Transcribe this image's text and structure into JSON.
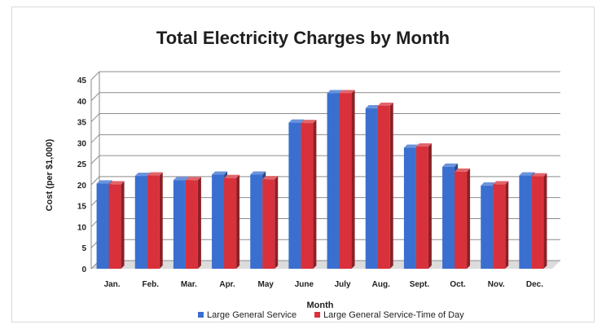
{
  "chart_data": {
    "type": "bar",
    "title": "Total Electricity Charges by Month",
    "xlabel": "Month",
    "ylabel": "Cost (per $1,000)",
    "ylim": [
      0,
      45
    ],
    "yticks": [
      0,
      5,
      10,
      15,
      20,
      25,
      30,
      35,
      40,
      45
    ],
    "grid": true,
    "legend_position": "bottom",
    "categories": [
      "Jan.",
      "Feb.",
      "Mar.",
      "Apr.",
      "May",
      "June",
      "July",
      "Aug.",
      "Sept.",
      "Oct.",
      "Nov.",
      "Dec."
    ],
    "series": [
      {
        "name": "Large General Service",
        "color": "#3a6fd0",
        "values": [
          20.3,
          22.1,
          21.1,
          22.4,
          22.4,
          34.8,
          41.8,
          38.2,
          28.8,
          24.3,
          19.8,
          22.2
        ]
      },
      {
        "name": "Large General Service-Time of Day",
        "color": "#d8313b",
        "values": [
          20.1,
          22.2,
          21.1,
          21.6,
          21.3,
          34.7,
          41.8,
          38.8,
          29.1,
          23.1,
          20.1,
          22.0
        ]
      }
    ]
  }
}
